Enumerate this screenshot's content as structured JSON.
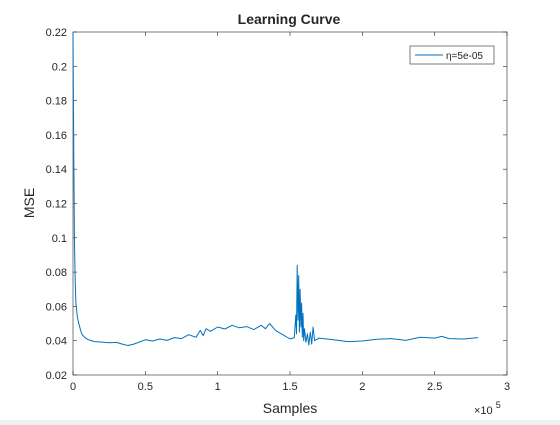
{
  "chart_data": {
    "type": "line",
    "title": "Learning Curve",
    "xlabel": "Samples",
    "ylabel": "MSE",
    "x_exponent_label": "×10",
    "x_exponent_power": "5",
    "xlim": [
      0,
      3
    ],
    "ylim": [
      0.02,
      0.22
    ],
    "x_ticks": [
      0,
      0.5,
      1,
      1.5,
      2,
      2.5,
      3
    ],
    "x_tick_labels": [
      "0",
      "0.5",
      "1",
      "1.5",
      "2",
      "2.5",
      "3"
    ],
    "y_ticks": [
      0.02,
      0.04,
      0.06,
      0.08,
      0.1,
      0.12,
      0.14,
      0.16,
      0.18,
      0.2,
      0.22
    ],
    "y_tick_labels": [
      "0.02",
      "0.04",
      "0.06",
      "0.08",
      "0.1",
      "0.12",
      "0.14",
      "0.16",
      "0.18",
      "0.2",
      "0.22"
    ],
    "grid": false,
    "legend_position": "top-right",
    "series": [
      {
        "name": "η=5e-05",
        "color": "#0072BD",
        "x": [
          0,
          0.003,
          0.006,
          0.01,
          0.015,
          0.02,
          0.03,
          0.04,
          0.05,
          0.06,
          0.08,
          0.1,
          0.12,
          0.15,
          0.2,
          0.25,
          0.3,
          0.35,
          0.38,
          0.42,
          0.5,
          0.55,
          0.6,
          0.65,
          0.7,
          0.75,
          0.8,
          0.85,
          0.88,
          0.9,
          0.92,
          0.95,
          1.0,
          1.05,
          1.1,
          1.15,
          1.2,
          1.25,
          1.3,
          1.33,
          1.36,
          1.4,
          1.45,
          1.5,
          1.53,
          1.54,
          1.545,
          1.55,
          1.555,
          1.56,
          1.565,
          1.57,
          1.575,
          1.58,
          1.585,
          1.59,
          1.595,
          1.6,
          1.61,
          1.62,
          1.63,
          1.64,
          1.65,
          1.66,
          1.67,
          1.7,
          1.8,
          1.9,
          2.0,
          2.1,
          2.2,
          2.3,
          2.4,
          2.5,
          2.55,
          2.6,
          2.7,
          2.8
        ],
        "values": [
          0.22,
          0.18,
          0.14,
          0.1,
          0.075,
          0.062,
          0.054,
          0.05,
          0.047,
          0.044,
          0.042,
          0.0408,
          0.0402,
          0.0395,
          0.0392,
          0.0388,
          0.039,
          0.0378,
          0.0372,
          0.038,
          0.0405,
          0.0398,
          0.041,
          0.0402,
          0.0418,
          0.0412,
          0.0435,
          0.042,
          0.046,
          0.043,
          0.047,
          0.0455,
          0.048,
          0.0468,
          0.049,
          0.0475,
          0.0482,
          0.0465,
          0.049,
          0.047,
          0.05,
          0.046,
          0.0435,
          0.041,
          0.0418,
          0.055,
          0.044,
          0.084,
          0.052,
          0.078,
          0.045,
          0.07,
          0.048,
          0.062,
          0.042,
          0.056,
          0.04,
          0.047,
          0.039,
          0.044,
          0.0375,
          0.045,
          0.038,
          0.048,
          0.04,
          0.0415,
          0.0405,
          0.0395,
          0.0398,
          0.0408,
          0.0412,
          0.0402,
          0.042,
          0.0415,
          0.0425,
          0.0412,
          0.041,
          0.0418
        ]
      }
    ]
  }
}
